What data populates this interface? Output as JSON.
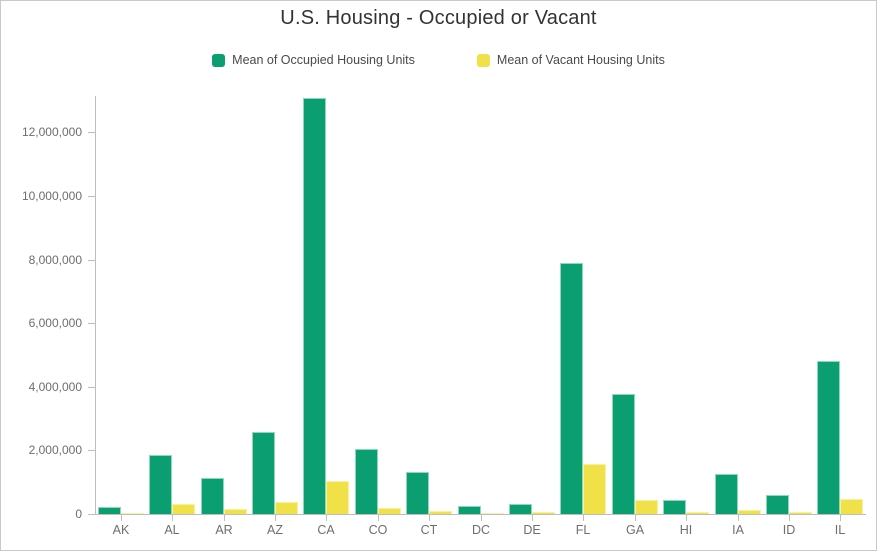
{
  "title": "U.S. Housing - Occupied or Vacant",
  "colors": {
    "occupied_fill": "#0a9e70",
    "occupied_edge": "#90d8ba",
    "vacant_fill": "#f0e149",
    "vacant_edge": "#f7f1a6",
    "axis_line": "#bdbdbd",
    "title_text": "#333333",
    "axis_text": "#6e6e6e",
    "legend_text": "#4a4a4a",
    "card_border": "#c9c9c9"
  },
  "legend": {
    "items": [
      {
        "label": "Mean of Occupied Housing Units",
        "color_key": "occupied_fill"
      },
      {
        "label": "Mean of Vacant Housing Units",
        "color_key": "vacant_fill"
      }
    ]
  },
  "chart_data": {
    "type": "bar",
    "title": "U.S. Housing - Occupied or Vacant",
    "categories": [
      "AK",
      "AL",
      "AR",
      "AZ",
      "CA",
      "CO",
      "CT",
      "DC",
      "DE",
      "FL",
      "GA",
      "HI",
      "IA",
      "ID",
      "IL"
    ],
    "series": [
      {
        "name": "Mean of Occupied Housing Units",
        "color_key": "occupied_fill",
        "values": [
          230000,
          1850000,
          1120000,
          2570000,
          13100000,
          2050000,
          1330000,
          250000,
          320000,
          7900000,
          3780000,
          430000,
          1250000,
          600000,
          4820000
        ]
      },
      {
        "name": "Mean of Vacant Housing Units",
        "color_key": "vacant_fill",
        "values": [
          40000,
          330000,
          160000,
          370000,
          1030000,
          180000,
          90000,
          30000,
          50000,
          1580000,
          450000,
          80000,
          120000,
          70000,
          470000
        ]
      }
    ],
    "xlabel": "",
    "ylabel": "",
    "ylim": [
      0,
      13200000
    ],
    "yticks": [
      0,
      2000000,
      4000000,
      6000000,
      8000000,
      10000000,
      12000000
    ],
    "grid": false,
    "legend_position": "top"
  }
}
